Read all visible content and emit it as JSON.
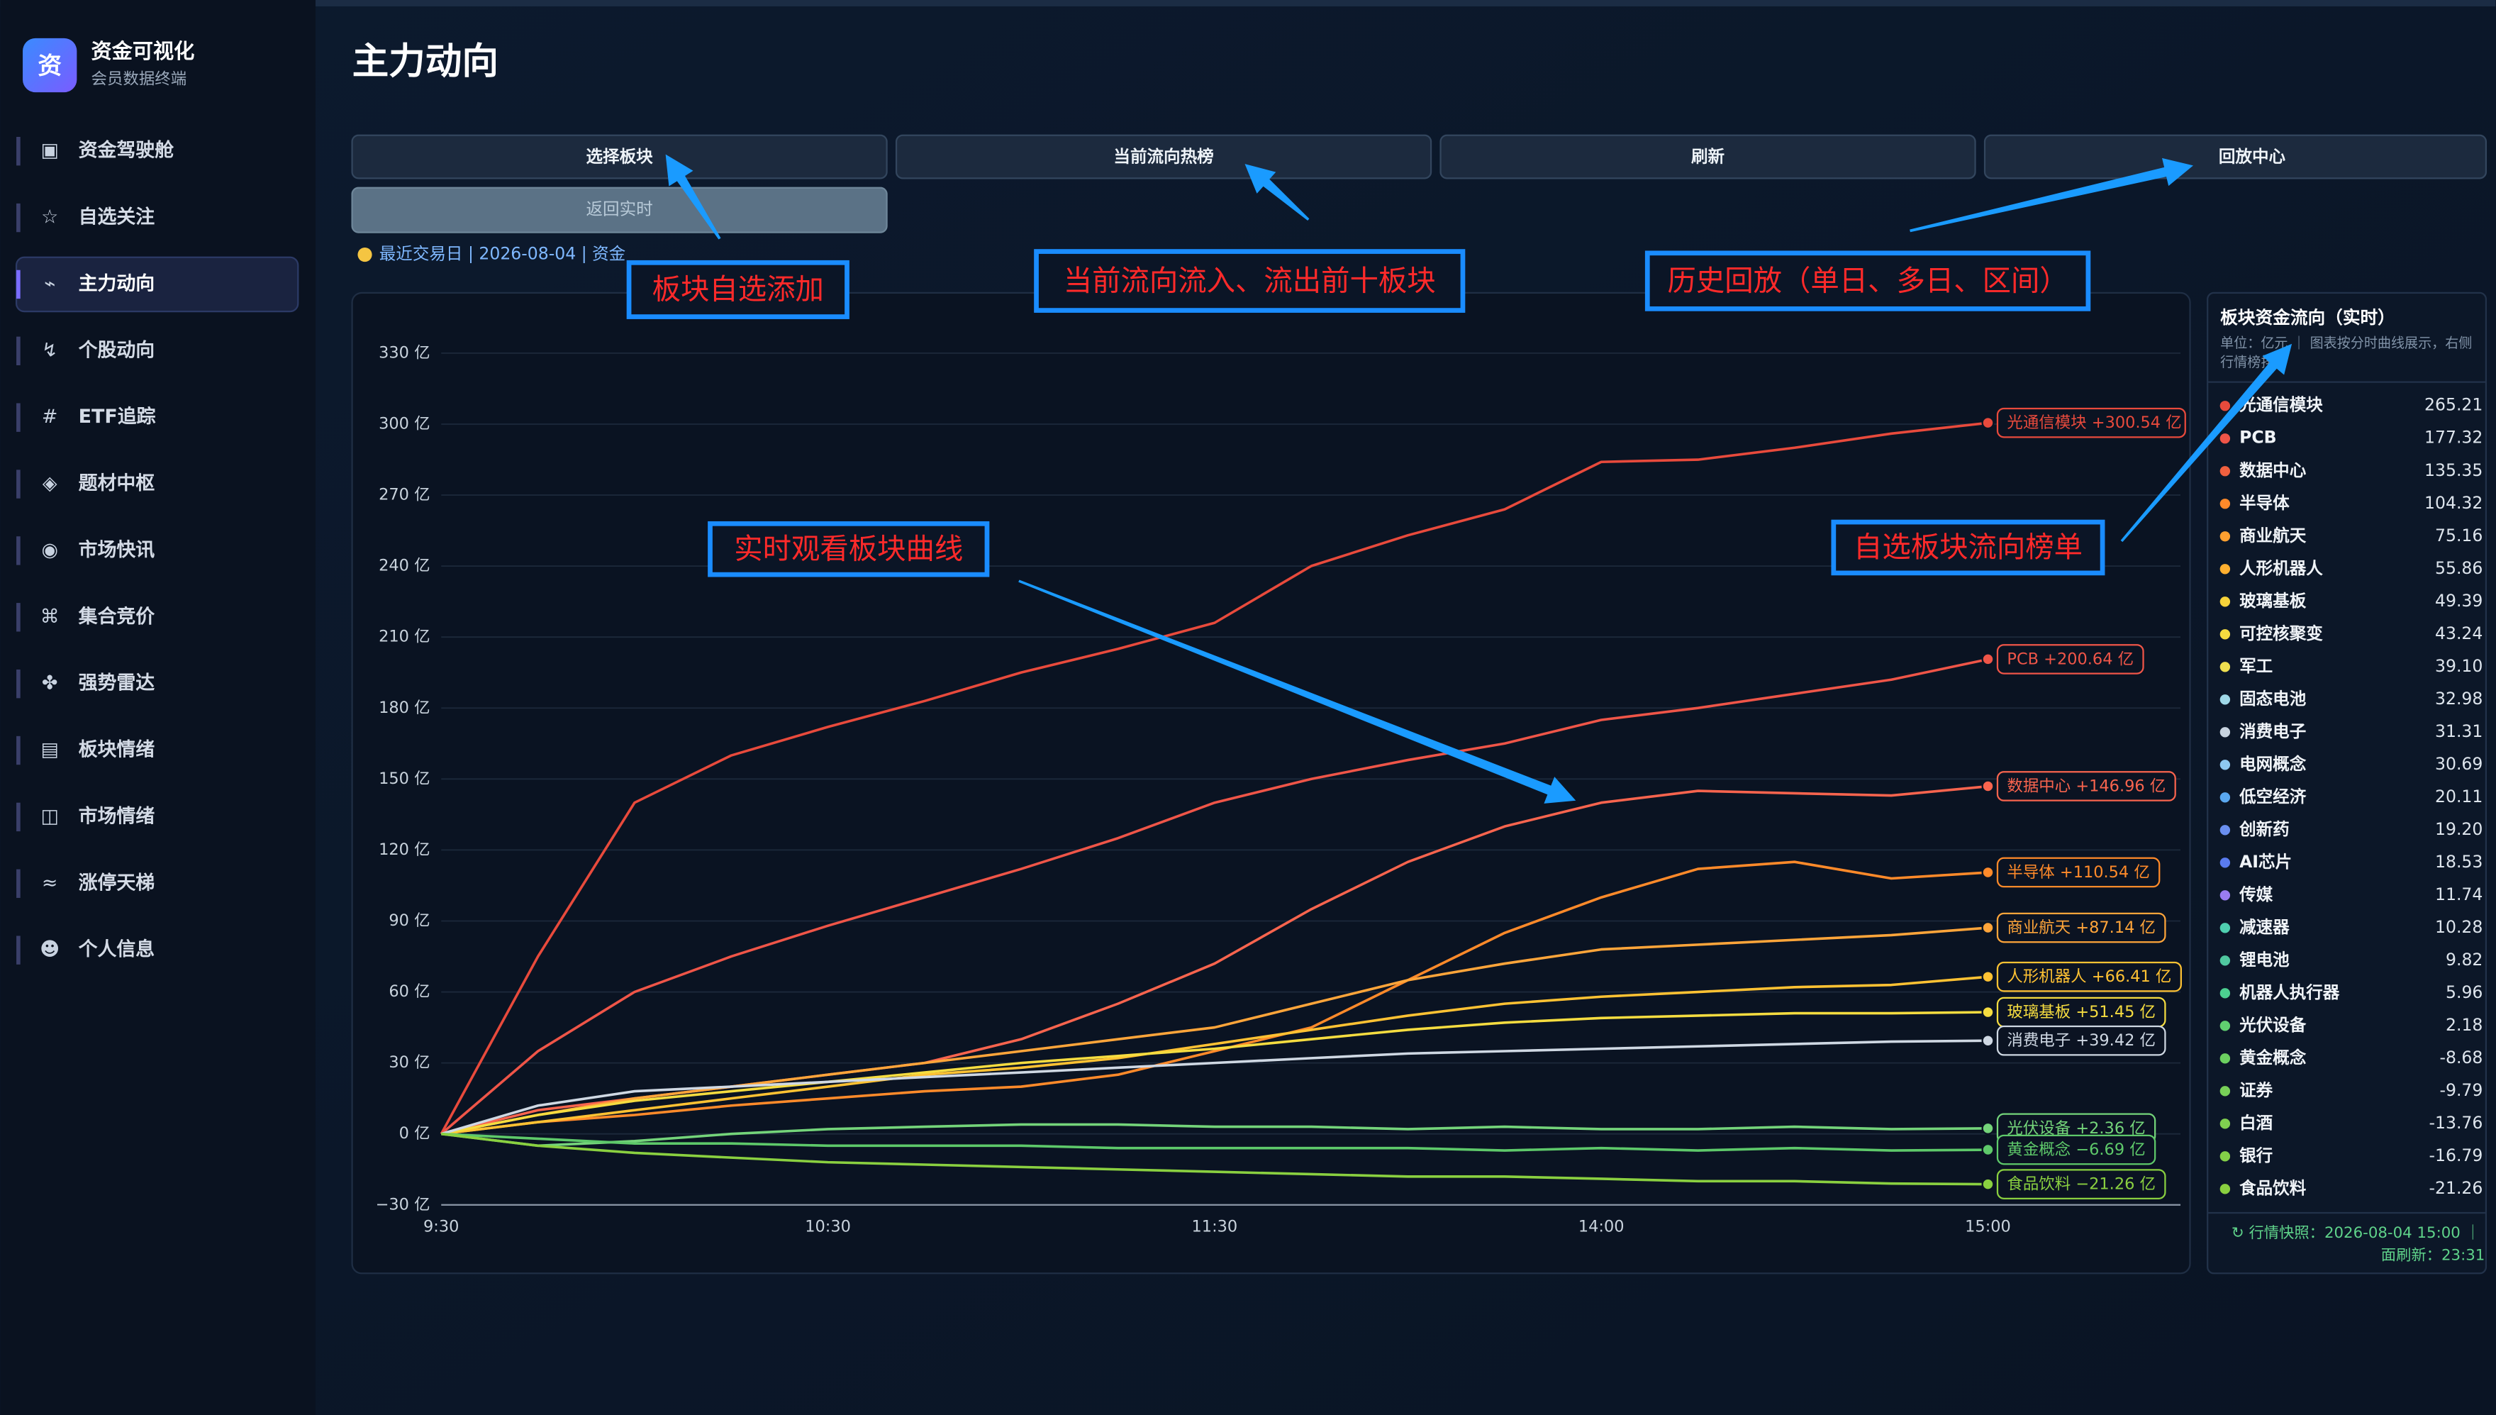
{
  "sidebar": {
    "logo": "资",
    "title": "资金可视化",
    "subtitle": "会员数据终端",
    "items": [
      {
        "icon": "▣",
        "label": "资金驾驶舱"
      },
      {
        "icon": "☆",
        "label": "自选关注"
      },
      {
        "icon": "⌁",
        "label": "主力动向",
        "active": true
      },
      {
        "icon": "↯",
        "label": "个股动向"
      },
      {
        "icon": "#",
        "label": "ETF追踪"
      },
      {
        "icon": "◈",
        "label": "题材中枢"
      },
      {
        "icon": "◉",
        "label": "市场快讯"
      },
      {
        "icon": "⌘",
        "label": "集合竞价"
      },
      {
        "icon": "✤",
        "label": "强势雷达"
      },
      {
        "icon": "▤",
        "label": "板块情绪"
      },
      {
        "icon": "◫",
        "label": "市场情绪"
      },
      {
        "icon": "≈",
        "label": "涨停天梯"
      },
      {
        "icon": "☻",
        "label": "个人信息"
      }
    ]
  },
  "header": {
    "title": "主力动向"
  },
  "toolbar": {
    "buttons": [
      "选择板块",
      "当前流向热榜",
      "刷新",
      "回放中心"
    ],
    "back_button": "返回实时",
    "status": "最近交易日 | 2026-08-04 | 资金"
  },
  "chart_data": {
    "type": "line",
    "categories": [
      "9:30",
      null,
      null,
      null,
      "10:30",
      null,
      null,
      null,
      "11:30",
      null,
      null,
      null,
      "14:00",
      null,
      null,
      null,
      "15:00"
    ],
    "ylim": [
      -30,
      340
    ],
    "yticks": [
      {
        "value": -30,
        "label": "−30 亿"
      },
      {
        "value": 0,
        "label": "0 亿"
      },
      {
        "value": 30,
        "label": "30 亿"
      },
      {
        "value": 60,
        "label": "60 亿"
      },
      {
        "value": 90,
        "label": "90 亿"
      },
      {
        "value": 120,
        "label": "120 亿"
      },
      {
        "value": 150,
        "label": "150 亿"
      },
      {
        "value": 180,
        "label": "180 亿"
      },
      {
        "value": 210,
        "label": "210 亿"
      },
      {
        "value": 240,
        "label": "240 亿"
      },
      {
        "value": 270,
        "label": "270 亿"
      },
      {
        "value": 300,
        "label": "300 亿"
      },
      {
        "value": 330,
        "label": "330 亿"
      }
    ],
    "grid": true,
    "series": [
      {
        "name": "光通信模块",
        "color": "#e84a3c",
        "values": [
          0,
          75,
          140,
          160,
          172,
          183,
          195,
          205,
          216,
          240,
          253,
          264,
          284,
          285,
          290,
          296,
          300.54
        ],
        "value_labels": [
          null,
          null,
          null,
          null,
          null,
          null,
          null,
          null,
          null,
          null,
          null,
          null,
          null,
          null,
          null,
          null,
          "+300.54 亿"
        ]
      },
      {
        "name": "PCB",
        "color": "#ef5548",
        "values": [
          0,
          35,
          60,
          75,
          88,
          100,
          112,
          125,
          140,
          150,
          158,
          165,
          175,
          180,
          186,
          192,
          200.64
        ],
        "value_labels": [
          null,
          null,
          null,
          null,
          null,
          null,
          null,
          null,
          null,
          null,
          null,
          null,
          null,
          null,
          null,
          null,
          "+200.64 亿"
        ]
      },
      {
        "name": "数据中心",
        "color": "#f8644e",
        "values": [
          0,
          10,
          15,
          20,
          25,
          30,
          40,
          55,
          72,
          95,
          115,
          130,
          140,
          145,
          144,
          143,
          146.96
        ],
        "value_labels": [
          null,
          null,
          null,
          null,
          null,
          null,
          null,
          null,
          null,
          null,
          null,
          null,
          null,
          null,
          null,
          null,
          "+146.96 亿"
        ]
      },
      {
        "name": "半导体",
        "color": "#ff8a2a",
        "values": [
          0,
          5,
          8,
          12,
          15,
          18,
          20,
          25,
          35,
          45,
          65,
          85,
          100,
          112,
          115,
          108,
          110.54
        ],
        "value_labels": [
          null,
          null,
          null,
          null,
          null,
          null,
          null,
          null,
          null,
          null,
          null,
          null,
          null,
          null,
          null,
          null,
          "+110.54 亿"
        ]
      },
      {
        "name": "商业航天",
        "color": "#ffa53a",
        "values": [
          0,
          8,
          15,
          20,
          25,
          30,
          35,
          40,
          45,
          55,
          65,
          72,
          78,
          80,
          82,
          84,
          87.14
        ],
        "value_labels": [
          null,
          null,
          null,
          null,
          null,
          null,
          null,
          null,
          null,
          null,
          null,
          null,
          null,
          null,
          null,
          null,
          "+87.14 亿"
        ]
      },
      {
        "name": "人形机器人",
        "color": "#ffc233",
        "values": [
          0,
          5,
          10,
          15,
          20,
          25,
          28,
          32,
          38,
          44,
          50,
          55,
          58,
          60,
          62,
          63,
          66.41
        ],
        "value_labels": [
          null,
          null,
          null,
          null,
          null,
          null,
          null,
          null,
          null,
          null,
          null,
          null,
          null,
          null,
          null,
          null,
          "+66.41 亿"
        ]
      },
      {
        "name": "玻璃基板",
        "color": "#f5dc40",
        "values": [
          0,
          8,
          14,
          18,
          22,
          26,
          30,
          33,
          36,
          40,
          44,
          47,
          49,
          50,
          51,
          51,
          51.45
        ],
        "value_labels": [
          null,
          null,
          null,
          null,
          null,
          null,
          null,
          null,
          null,
          null,
          null,
          null,
          null,
          null,
          null,
          null,
          "+51.45 亿"
        ]
      },
      {
        "name": "消费电子",
        "color": "#cfd8e3",
        "values": [
          0,
          12,
          18,
          20,
          22,
          24,
          26,
          28,
          30,
          32,
          34,
          35,
          36,
          37,
          38,
          39,
          39.42
        ],
        "value_labels": [
          null,
          null,
          null,
          null,
          null,
          null,
          null,
          null,
          null,
          null,
          null,
          null,
          null,
          null,
          null,
          null,
          "+39.42 亿"
        ]
      },
      {
        "name": "光伏设备",
        "color": "#74d47a",
        "values": [
          0,
          -5,
          -3,
          0,
          2,
          3,
          4,
          4,
          3,
          3,
          2,
          3,
          2,
          2,
          3,
          2,
          2.36
        ],
        "value_labels": [
          null,
          null,
          null,
          null,
          null,
          null,
          null,
          null,
          null,
          null,
          null,
          null,
          null,
          null,
          null,
          null,
          "+2.36 亿"
        ]
      },
      {
        "name": "黄金概念",
        "color": "#5ec96a",
        "values": [
          0,
          -2,
          -4,
          -4,
          -5,
          -5,
          -5,
          -6,
          -6,
          -6,
          -6,
          -7,
          -6,
          -7,
          -6,
          -7,
          -6.69
        ],
        "value_labels": [
          null,
          null,
          null,
          null,
          null,
          null,
          null,
          null,
          null,
          null,
          null,
          null,
          null,
          null,
          null,
          null,
          "−6.69 亿"
        ]
      },
      {
        "name": "食品饮料",
        "color": "#8ad040",
        "values": [
          0,
          -5,
          -8,
          -10,
          -12,
          -13,
          -14,
          -15,
          -16,
          -17,
          -18,
          -18,
          -19,
          -20,
          -20,
          -21,
          -21.26
        ],
        "value_labels": [
          null,
          null,
          null,
          null,
          null,
          null,
          null,
          null,
          null,
          null,
          null,
          null,
          null,
          null,
          null,
          null,
          "−21.26 亿"
        ]
      }
    ]
  },
  "panel": {
    "title": "板块资金流向（实时）",
    "subtitle": [
      "单位：亿元 ｜ 图表按分时曲线展示，右侧",
      "行情榜排序"
    ],
    "rows": [
      {
        "name": "光通信模块",
        "value": "265.21",
        "color": "#e84a3c"
      },
      {
        "name": "PCB",
        "value": "177.32",
        "color": "#ef5548"
      },
      {
        "name": "数据中心",
        "value": "135.35",
        "color": "#f0603f"
      },
      {
        "name": "半导体",
        "value": "104.32",
        "color": "#ff8a2a"
      },
      {
        "name": "商业航天",
        "value": "75.16",
        "color": "#ffa030"
      },
      {
        "name": "人形机器人",
        "value": "55.86",
        "color": "#ffb030"
      },
      {
        "name": "玻璃基板",
        "value": "49.39",
        "color": "#f7d33a"
      },
      {
        "name": "可控核聚变",
        "value": "43.24",
        "color": "#f5dc40"
      },
      {
        "name": "军工",
        "value": "39.10",
        "color": "#f0e050"
      },
      {
        "name": "固态电池",
        "value": "32.98",
        "color": "#9fd8e8"
      },
      {
        "name": "消费电子",
        "value": "31.31",
        "color": "#c8d4e0"
      },
      {
        "name": "电网概念",
        "value": "30.69",
        "color": "#8ec8f0"
      },
      {
        "name": "低空经济",
        "value": "20.11",
        "color": "#5aa8f0"
      },
      {
        "name": "创新药",
        "value": "19.20",
        "color": "#6a8ff0"
      },
      {
        "name": "AI芯片",
        "value": "18.53",
        "color": "#5a7cf0"
      },
      {
        "name": "传媒",
        "value": "11.74",
        "color": "#9a7cf0"
      },
      {
        "name": "减速器",
        "value": "10.28",
        "color": "#4fd0b0"
      },
      {
        "name": "锂电池",
        "value": "9.82",
        "color": "#50c8a0"
      },
      {
        "name": "机器人执行器",
        "value": "5.96",
        "color": "#4cd090"
      },
      {
        "name": "光伏设备",
        "value": "2.18",
        "color": "#60d070"
      },
      {
        "name": "黄金概念",
        "value": "-8.68",
        "color": "#6cd060"
      },
      {
        "name": "证券",
        "value": "-9.79",
        "color": "#78d058"
      },
      {
        "name": "白酒",
        "value": "-13.76",
        "color": "#80d050"
      },
      {
        "name": "银行",
        "value": "-16.79",
        "color": "#84d048"
      },
      {
        "name": "食品饮料",
        "value": "-21.26",
        "color": "#8ad040"
      }
    ],
    "footer": [
      "↻ 行情快照：2026-08-04 15:00 ｜",
      "面刷新：23:31"
    ]
  },
  "annotations": [
    "板块自选添加",
    "当前流向流入、流出前十板块",
    "历史回放（单日、多日、区间）",
    "实时观看板块曲线",
    "自选板块流向榜单"
  ]
}
